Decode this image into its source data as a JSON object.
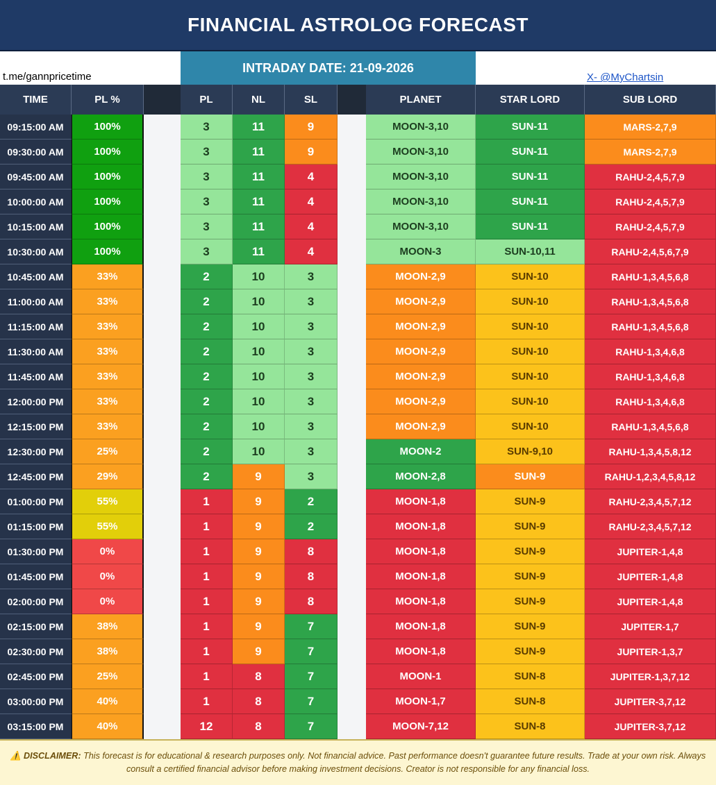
{
  "title": "FINANCIAL ASTROLOG FORECAST",
  "telegram": "t.me/gannpricetime",
  "intraday_label": "INTRADAY DATE: 21-09-2026",
  "x_handle": "X- @MyChartsin",
  "headers": {
    "time": "TIME",
    "pct": "PL %",
    "pl": "PL",
    "nl": "NL",
    "sl": "SL",
    "planet": "PLANET",
    "star": "STAR LORD",
    "sub": "SUB LORD"
  },
  "colors": {
    "dark_green": "#2ea44a",
    "light_green": "#95e59a",
    "orange": "#fb8c1c",
    "yellow": "#fcc21b",
    "red": "#e03040",
    "pct_green": "#10a010",
    "pct_orange": "#fba020",
    "pct_red": "#f04848",
    "pct_yellow": "#e2cf0a"
  },
  "rows": [
    {
      "time": "09:15:00 AM",
      "pct": "100%",
      "pl": "3",
      "nl": "11",
      "sl": "9",
      "planet": "MOON-3,10",
      "star": "SUN-11",
      "sub": "MARS-2,7,9"
    },
    {
      "time": "09:30:00 AM",
      "pct": "100%",
      "pl": "3",
      "nl": "11",
      "sl": "9",
      "planet": "MOON-3,10",
      "star": "SUN-11",
      "sub": "MARS-2,7,9"
    },
    {
      "time": "09:45:00 AM",
      "pct": "100%",
      "pl": "3",
      "nl": "11",
      "sl": "4",
      "planet": "MOON-3,10",
      "star": "SUN-11",
      "sub": "RAHU-2,4,5,7,9"
    },
    {
      "time": "10:00:00 AM",
      "pct": "100%",
      "pl": "3",
      "nl": "11",
      "sl": "4",
      "planet": "MOON-3,10",
      "star": "SUN-11",
      "sub": "RAHU-2,4,5,7,9"
    },
    {
      "time": "10:15:00 AM",
      "pct": "100%",
      "pl": "3",
      "nl": "11",
      "sl": "4",
      "planet": "MOON-3,10",
      "star": "SUN-11",
      "sub": "RAHU-2,4,5,7,9"
    },
    {
      "time": "10:30:00 AM",
      "pct": "100%",
      "pl": "3",
      "nl": "11",
      "sl": "4",
      "planet": "MOON-3",
      "star": "SUN-10,11",
      "sub": "RAHU-2,4,5,6,7,9"
    },
    {
      "time": "10:45:00 AM",
      "pct": "33%",
      "pl": "2",
      "nl": "10",
      "sl": "3",
      "planet": "MOON-2,9",
      "star": "SUN-10",
      "sub": "RAHU-1,3,4,5,6,8"
    },
    {
      "time": "11:00:00 AM",
      "pct": "33%",
      "pl": "2",
      "nl": "10",
      "sl": "3",
      "planet": "MOON-2,9",
      "star": "SUN-10",
      "sub": "RAHU-1,3,4,5,6,8"
    },
    {
      "time": "11:15:00 AM",
      "pct": "33%",
      "pl": "2",
      "nl": "10",
      "sl": "3",
      "planet": "MOON-2,9",
      "star": "SUN-10",
      "sub": "RAHU-1,3,4,5,6,8"
    },
    {
      "time": "11:30:00 AM",
      "pct": "33%",
      "pl": "2",
      "nl": "10",
      "sl": "3",
      "planet": "MOON-2,9",
      "star": "SUN-10",
      "sub": "RAHU-1,3,4,6,8"
    },
    {
      "time": "11:45:00 AM",
      "pct": "33%",
      "pl": "2",
      "nl": "10",
      "sl": "3",
      "planet": "MOON-2,9",
      "star": "SUN-10",
      "sub": "RAHU-1,3,4,6,8"
    },
    {
      "time": "12:00:00 PM",
      "pct": "33%",
      "pl": "2",
      "nl": "10",
      "sl": "3",
      "planet": "MOON-2,9",
      "star": "SUN-10",
      "sub": "RAHU-1,3,4,6,8"
    },
    {
      "time": "12:15:00 PM",
      "pct": "33%",
      "pl": "2",
      "nl": "10",
      "sl": "3",
      "planet": "MOON-2,9",
      "star": "SUN-10",
      "sub": "RAHU-1,3,4,5,6,8"
    },
    {
      "time": "12:30:00 PM",
      "pct": "25%",
      "pl": "2",
      "nl": "10",
      "sl": "3",
      "planet": "MOON-2",
      "star": "SUN-9,10",
      "sub": "RAHU-1,3,4,5,8,12"
    },
    {
      "time": "12:45:00 PM",
      "pct": "29%",
      "pl": "2",
      "nl": "9",
      "sl": "3",
      "planet": "MOON-2,8",
      "star": "SUN-9",
      "sub": "RAHU-1,2,3,4,5,8,12"
    },
    {
      "time": "01:00:00 PM",
      "pct": "55%",
      "pl": "1",
      "nl": "9",
      "sl": "2",
      "planet": "MOON-1,8",
      "star": "SUN-9",
      "sub": "RAHU-2,3,4,5,7,12"
    },
    {
      "time": "01:15:00 PM",
      "pct": "55%",
      "pl": "1",
      "nl": "9",
      "sl": "2",
      "planet": "MOON-1,8",
      "star": "SUN-9",
      "sub": "RAHU-2,3,4,5,7,12"
    },
    {
      "time": "01:30:00 PM",
      "pct": "0%",
      "pl": "1",
      "nl": "9",
      "sl": "8",
      "planet": "MOON-1,8",
      "star": "SUN-9",
      "sub": "JUPITER-1,4,8"
    },
    {
      "time": "01:45:00 PM",
      "pct": "0%",
      "pl": "1",
      "nl": "9",
      "sl": "8",
      "planet": "MOON-1,8",
      "star": "SUN-9",
      "sub": "JUPITER-1,4,8"
    },
    {
      "time": "02:00:00 PM",
      "pct": "0%",
      "pl": "1",
      "nl": "9",
      "sl": "8",
      "planet": "MOON-1,8",
      "star": "SUN-9",
      "sub": "JUPITER-1,4,8"
    },
    {
      "time": "02:15:00 PM",
      "pct": "38%",
      "pl": "1",
      "nl": "9",
      "sl": "7",
      "planet": "MOON-1,8",
      "star": "SUN-9",
      "sub": "JUPITER-1,7"
    },
    {
      "time": "02:30:00 PM",
      "pct": "38%",
      "pl": "1",
      "nl": "9",
      "sl": "7",
      "planet": "MOON-1,8",
      "star": "SUN-9",
      "sub": "JUPITER-1,3,7"
    },
    {
      "time": "02:45:00 PM",
      "pct": "25%",
      "pl": "1",
      "nl": "8",
      "sl": "7",
      "planet": "MOON-1",
      "star": "SUN-8",
      "sub": "JUPITER-1,3,7,12"
    },
    {
      "time": "03:00:00 PM",
      "pct": "40%",
      "pl": "1",
      "nl": "8",
      "sl": "7",
      "planet": "MOON-1,7",
      "star": "SUN-8",
      "sub": "JUPITER-3,7,12"
    },
    {
      "time": "03:15:00 PM",
      "pct": "40%",
      "pl": "12",
      "nl": "8",
      "sl": "7",
      "planet": "MOON-7,12",
      "star": "SUN-8",
      "sub": "JUPITER-3,7,12"
    }
  ],
  "disclaimer": {
    "icon": "warning-icon",
    "label": "DISCLAIMER:",
    "text": "This forecast is for educational & research purposes only. Not financial advice. Past performance doesn't guarantee future results. Trade at your own risk. Always consult a certified financial advisor before making investment decisions. Creator is not responsible for any financial loss."
  }
}
